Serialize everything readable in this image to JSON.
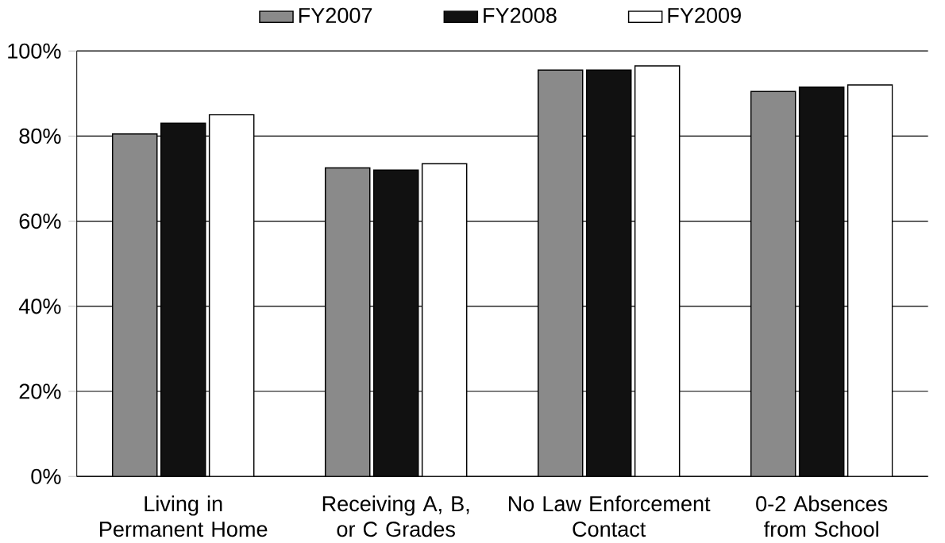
{
  "chart_data": {
    "type": "bar",
    "categories": [
      "Living in Permanent Home",
      "Receiving A, B, or C Grades",
      "No Law Enforcement Contact",
      "0-2 Absences from School"
    ],
    "series": [
      {
        "name": "FY2007",
        "color": "#8a8a8a",
        "values": [
          80.5,
          72.5,
          95.5,
          90.5
        ]
      },
      {
        "name": "FY2008",
        "color": "#111111",
        "values": [
          83,
          72,
          95.5,
          91.5
        ]
      },
      {
        "name": "FY2009",
        "color": "#ffffff",
        "values": [
          85,
          73.5,
          96.5,
          92
        ]
      }
    ],
    "ylim": [
      0,
      100
    ],
    "yticks": [
      {
        "value": 0,
        "label": "0%"
      },
      {
        "value": 20,
        "label": "20%"
      },
      {
        "value": 40,
        "label": "40%"
      },
      {
        "value": 60,
        "label": "60%"
      },
      {
        "value": 80,
        "label": "80%"
      },
      {
        "value": 100,
        "label": "100%"
      }
    ],
    "grid": "y",
    "legend": "top"
  }
}
